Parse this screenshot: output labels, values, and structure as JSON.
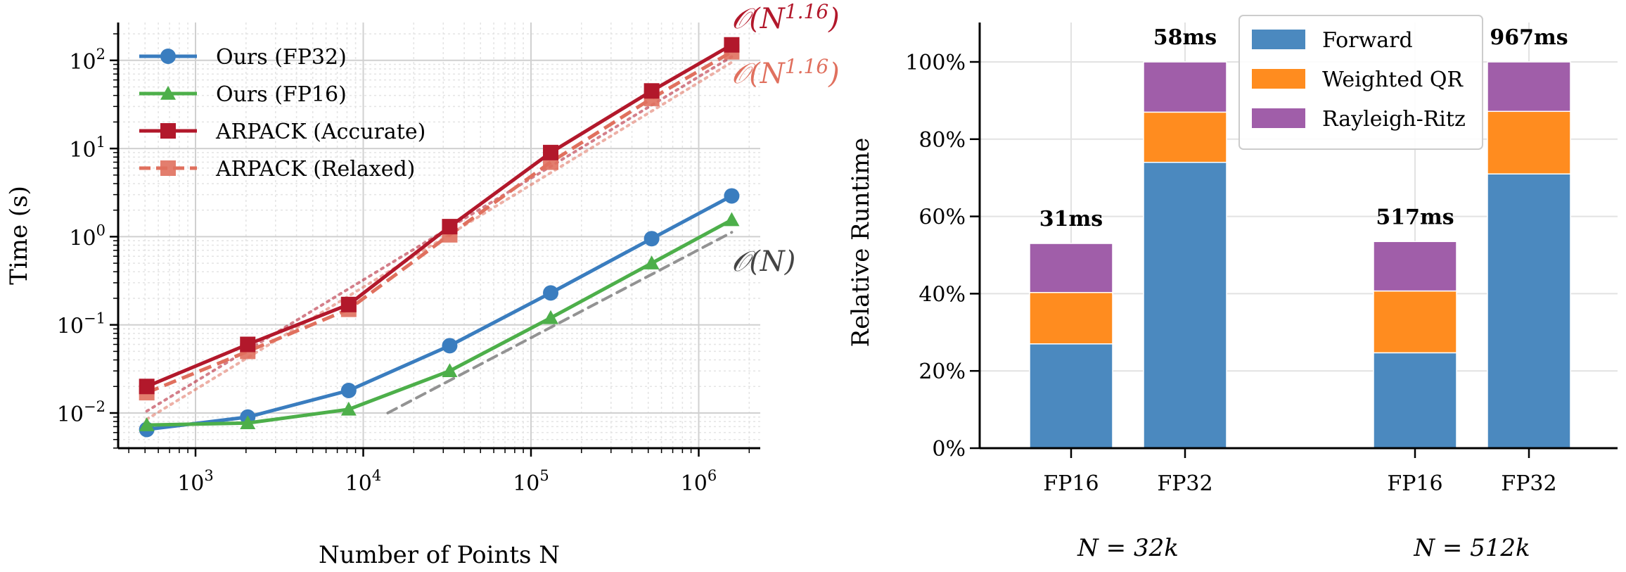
{
  "chart_data": [
    {
      "type": "line",
      "xscale": "log",
      "yscale": "log",
      "xlabel": "Number of Points N",
      "ylabel": "Time (s)",
      "xlim": [
        350,
        2500000
      ],
      "ylim": [
        0.004,
        250
      ],
      "xticks": [
        {
          "v": 1000,
          "base": "10",
          "exp": "3"
        },
        {
          "v": 10000,
          "base": "10",
          "exp": "4"
        },
        {
          "v": 100000,
          "base": "10",
          "exp": "5"
        },
        {
          "v": 1000000,
          "base": "10",
          "exp": "6"
        }
      ],
      "yticks": [
        {
          "v": 0.01,
          "base": "10",
          "exp": "−2"
        },
        {
          "v": 0.1,
          "base": "10",
          "exp": "−1"
        },
        {
          "v": 1,
          "base": "10",
          "exp": "0"
        },
        {
          "v": 10,
          "base": "10",
          "exp": "1"
        },
        {
          "v": 100,
          "base": "10",
          "exp": "2"
        }
      ],
      "grid": true,
      "legend": "top-left",
      "x": [
        512,
        2048,
        8192,
        32768,
        131072,
        524288,
        1572864
      ],
      "series": [
        {
          "name": "Ours (FP32)",
          "color": "#3a7dbf",
          "marker": "circle",
          "dash": "solid",
          "values": [
            0.0065,
            0.009,
            0.018,
            0.058,
            0.23,
            0.95,
            2.9
          ]
        },
        {
          "name": "Ours (FP16)",
          "color": "#4daf4a",
          "marker": "triangle",
          "dash": "solid",
          "values": [
            0.0073,
            0.0077,
            0.011,
            0.03,
            0.12,
            0.5,
            1.55
          ]
        },
        {
          "name": "ARPACK (Accurate)",
          "color": "#b2182b",
          "marker": "square",
          "dash": "solid",
          "values": [
            0.02,
            0.06,
            0.17,
            1.3,
            9.0,
            45,
            150
          ]
        },
        {
          "name": "ARPACK (Relaxed)",
          "color": "#e0705e",
          "marker": "square",
          "dash": "dashed",
          "values": [
            0.017,
            0.05,
            0.15,
            1.05,
            7.0,
            37,
            125
          ]
        }
      ],
      "reference_lines": [
        {
          "label_base": "𝒪(N",
          "label_exp": "1.16",
          "label_end": ")",
          "color": "#b2182b",
          "x": [
            512,
            1572864
          ],
          "y": [
            0.0105,
            110
          ]
        },
        {
          "label_base": "𝒪(N",
          "label_exp": "1.16",
          "label_end": ")",
          "color": "#e0705e",
          "x": [
            512,
            1572864
          ],
          "y": [
            0.0085,
            95
          ]
        },
        {
          "label_base": "𝒪(N)",
          "label_exp": "",
          "label_end": "",
          "color": "#888888",
          "x": [
            14000,
            1572864
          ],
          "y": [
            0.01,
            1.12
          ]
        }
      ]
    },
    {
      "type": "bar",
      "stacked": true,
      "ylabel": "Relative Runtime",
      "ylim": [
        0,
        110
      ],
      "yticks": [
        "0%",
        "20%",
        "40%",
        "60%",
        "80%",
        "100%"
      ],
      "grid": true,
      "legend": "top-center",
      "groups": [
        "N = 32k",
        "N = 512k"
      ],
      "categories": [
        "FP16",
        "FP32",
        "FP16",
        "FP32"
      ],
      "totals_labels": [
        "31ms",
        "58ms",
        "517ms",
        "967ms"
      ],
      "series": [
        {
          "name": "Forward",
          "color": "#4b89bf",
          "values": [
            27,
            74,
            24.7,
            71
          ]
        },
        {
          "name": "Weighted QR",
          "color": "#ff8c1f",
          "values": [
            13.3,
            13,
            16,
            16.2
          ]
        },
        {
          "name": "Rayleigh-Ritz",
          "color": "#a05ea9",
          "values": [
            12.7,
            13,
            12.8,
            12.8
          ]
        }
      ]
    }
  ]
}
